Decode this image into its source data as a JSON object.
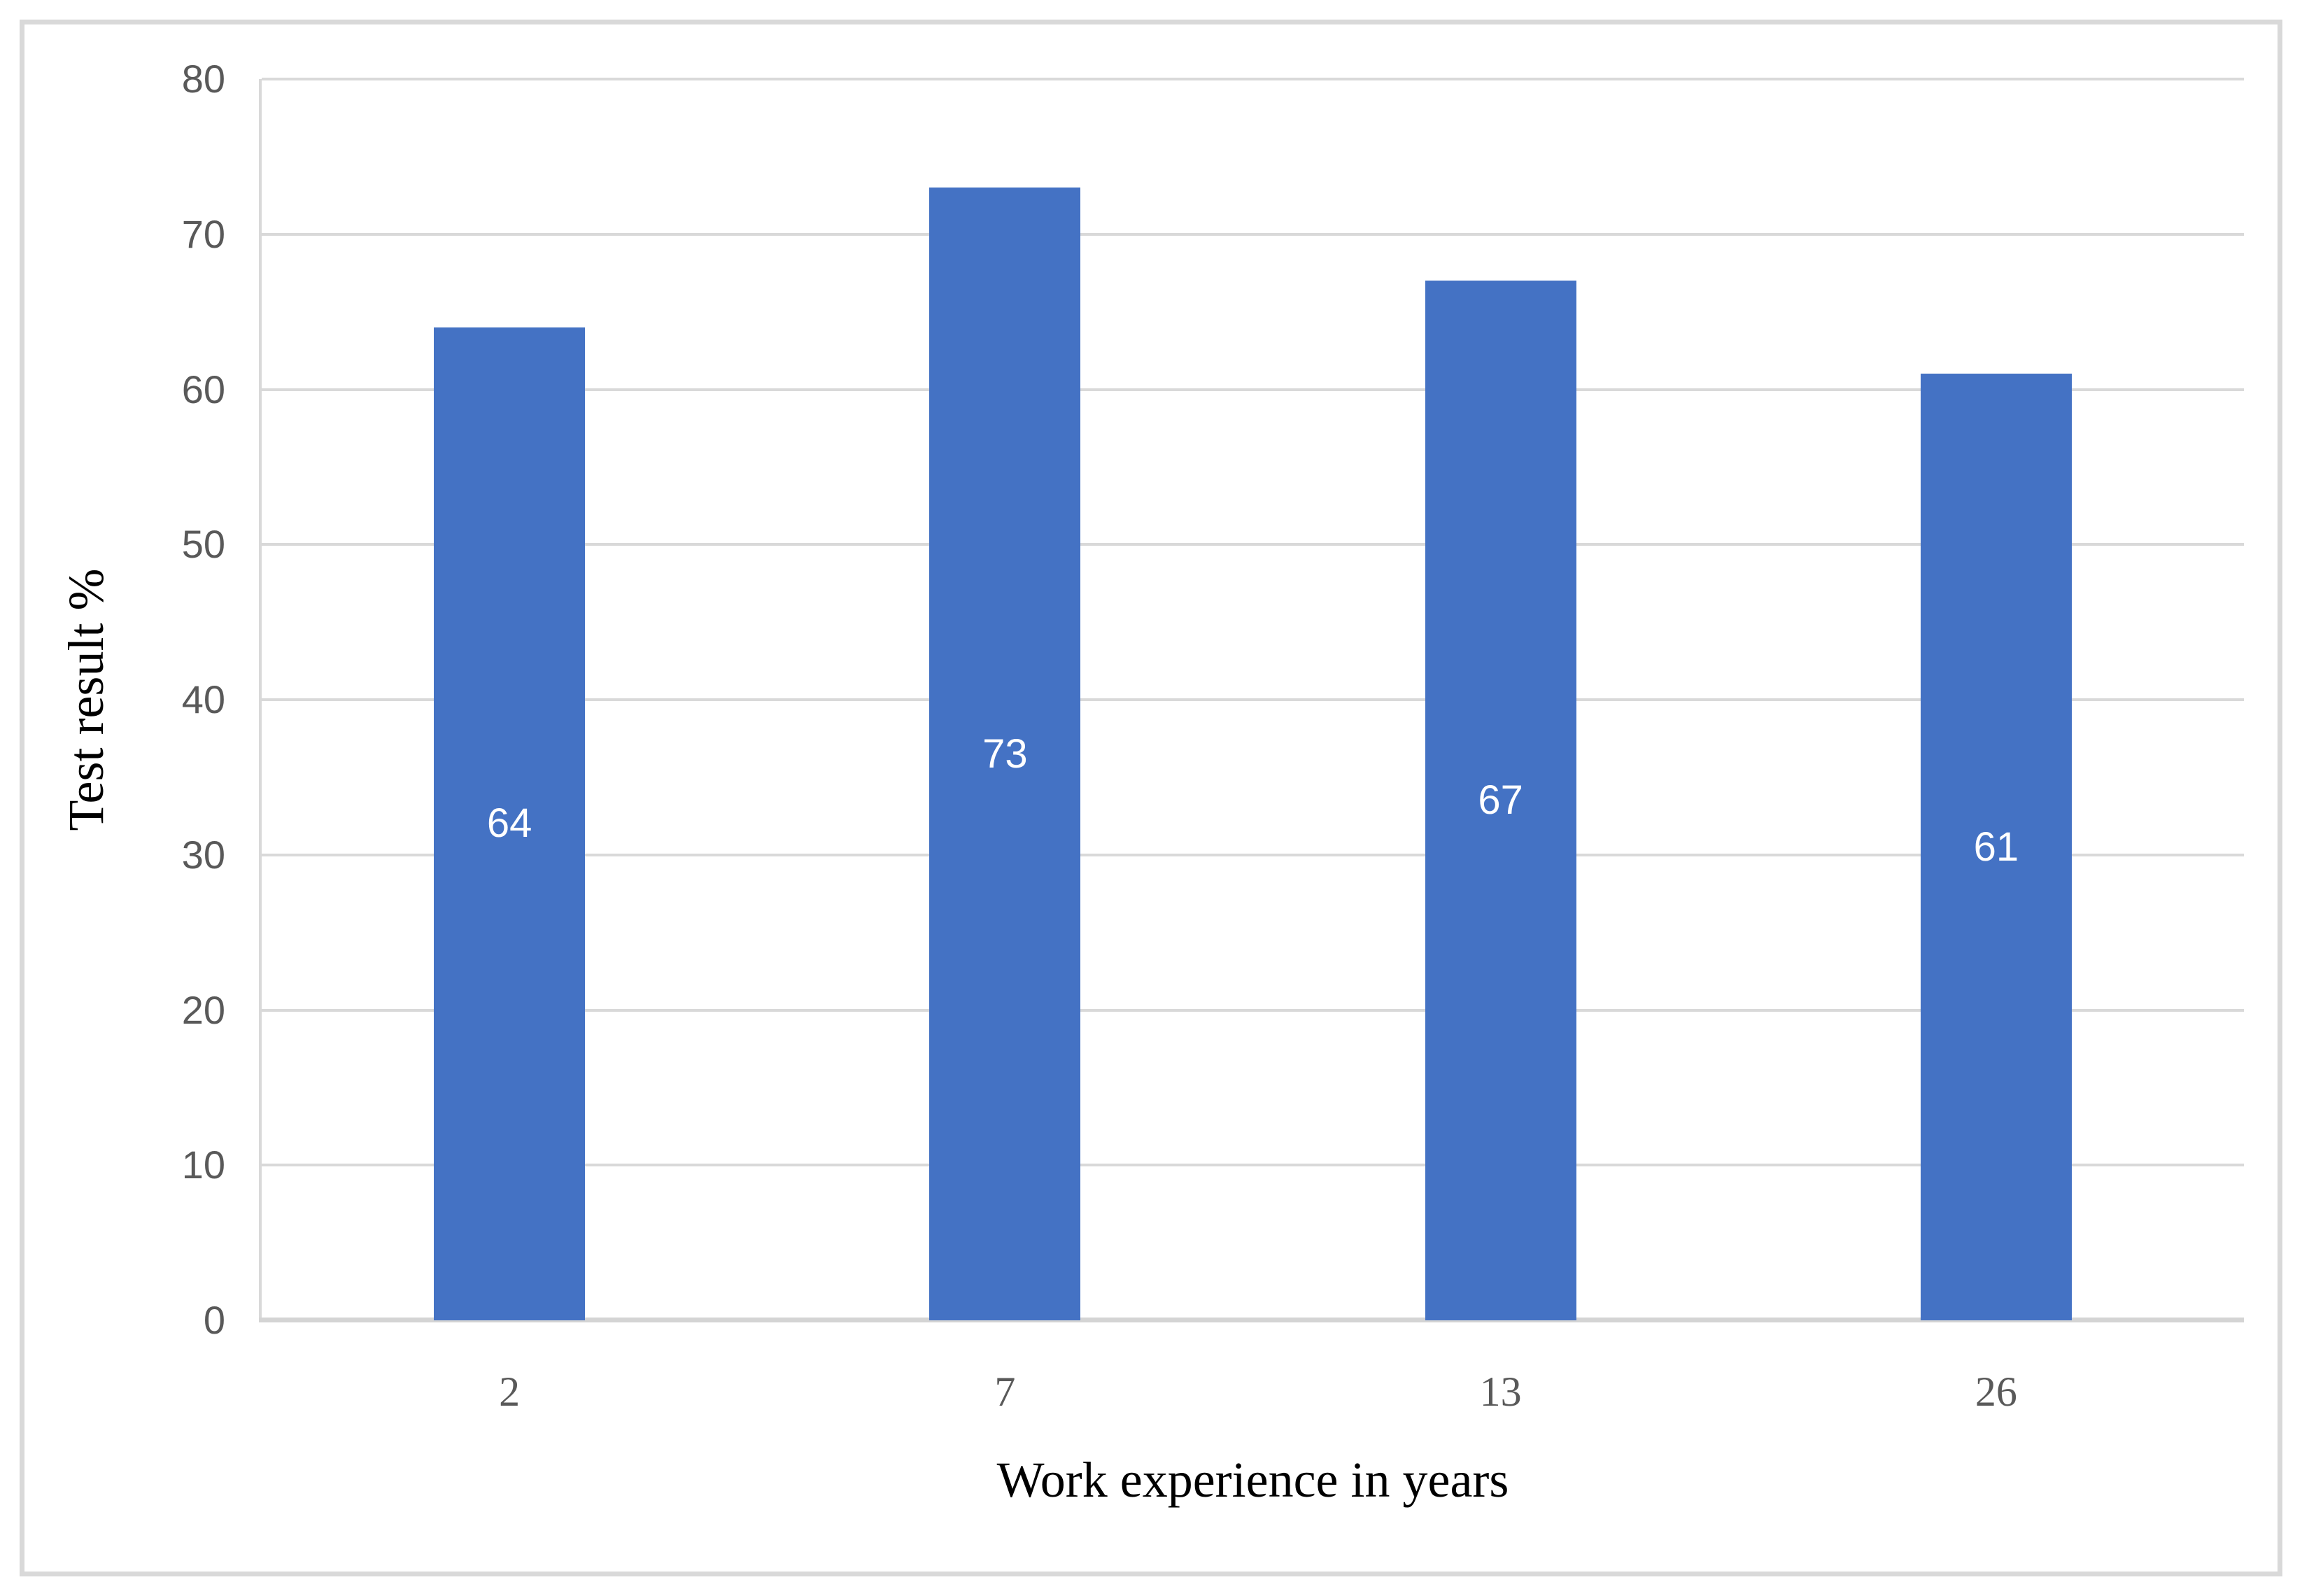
{
  "chart_data": {
    "type": "bar",
    "title": "",
    "categories": [
      "2",
      "7",
      "13",
      "26"
    ],
    "values": [
      64,
      73,
      67,
      61
    ],
    "xlabel": "Work experience in years",
    "ylabel": "Test result %",
    "ylim": [
      0,
      80
    ],
    "yticks": [
      0,
      10,
      20,
      30,
      40,
      50,
      60,
      70,
      80
    ],
    "grid": "horizontal",
    "legend": "none",
    "data_label_position": "inside-center",
    "colors": {
      "bar": "#4472c4",
      "data_label": "#ffffff",
      "tick_label": "#595959",
      "axis_title": "#000000",
      "gridline": "#d9d9d9",
      "frame_border": "#d9d9d9"
    }
  }
}
